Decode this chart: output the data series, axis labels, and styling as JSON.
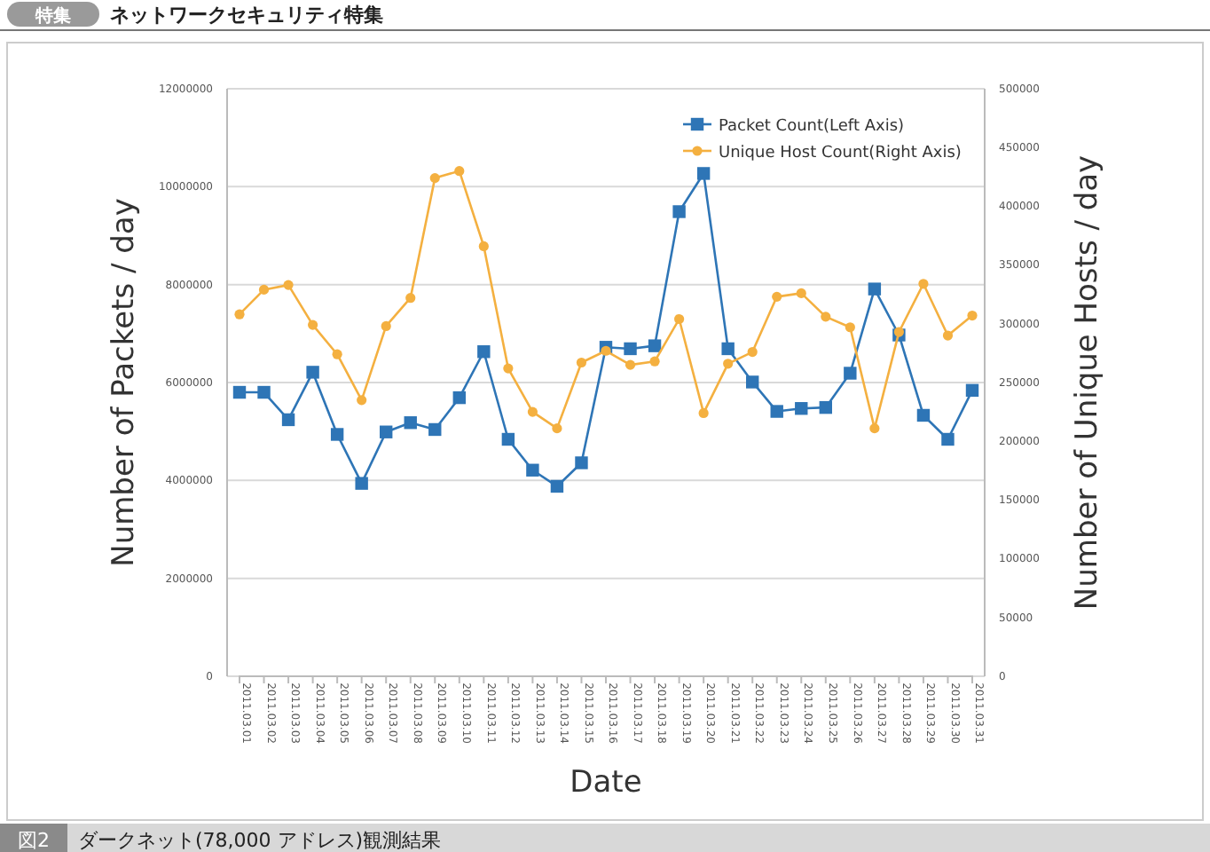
{
  "chart_data": {
    "type": "line",
    "xlabel": "Date",
    "ylabel": "Number of Packets / day",
    "y2label": "Number of Unique Hosts / day",
    "annotations": [
      "特集",
      "ネットワークセキュリティ特集",
      "図2",
      "ダークネット(78,000 アドレス)観測結果"
    ],
    "categories": [
      "2011.03.01",
      "2011.03.02",
      "2011.03.03",
      "2011.03.04",
      "2011.03.05",
      "2011.03.06",
      "2011.03.07",
      "2011.03.08",
      "2011.03.09",
      "2011.03.10",
      "2011.03.11",
      "2011.03.12",
      "2011.03.13",
      "2011.03.14",
      "2011.03.15",
      "2011.03.16",
      "2011.03.17",
      "2011.03.18",
      "2011.03.19",
      "2011.03.20",
      "2011.03.21",
      "2011.03.22",
      "2011.03.23",
      "2011.03.24",
      "2011.03.25",
      "2011.03.26",
      "2011.03.27",
      "2011.03.28",
      "2011.03.29",
      "2011.03.30",
      "2011.03.31"
    ],
    "series": [
      {
        "name": "Packet Count(Left Axis)",
        "color": "#2e75b6",
        "marker": "square",
        "values": [
          5800000,
          5800000,
          5240000,
          6210000,
          4940000,
          3940000,
          4990000,
          5180000,
          5040000,
          5690000,
          6630000,
          4840000,
          4210000,
          3880000,
          4360000,
          6720000,
          6690000,
          6750000,
          9490000,
          10270000,
          6690000,
          6010000,
          5410000,
          5470000,
          5490000,
          6190000,
          7910000,
          6970000,
          5330000,
          4840000,
          5840000
        ]
      },
      {
        "name": "Unique Host Count(Right Axis)",
        "color": "#f4b040",
        "marker": "circle",
        "axis": "y2",
        "values": [
          308000,
          329000,
          333000,
          299000,
          274000,
          235000,
          298000,
          322000,
          424000,
          430000,
          366000,
          262000,
          225000,
          211000,
          267000,
          277000,
          265000,
          268000,
          304000,
          224000,
          266000,
          276000,
          323000,
          326000,
          306000,
          297000,
          211000,
          293000,
          334000,
          290000,
          307000
        ]
      }
    ],
    "ylim": [
      0,
      12000000
    ],
    "yticks": [
      0,
      2000000,
      4000000,
      6000000,
      8000000,
      10000000,
      12000000
    ],
    "y2lim": [
      0,
      500000
    ],
    "y2ticks": [
      0,
      50000,
      100000,
      150000,
      200000,
      250000,
      300000,
      350000,
      400000,
      450000,
      500000
    ],
    "grid": "y",
    "legend": "top right",
    "line_style": "solid"
  }
}
